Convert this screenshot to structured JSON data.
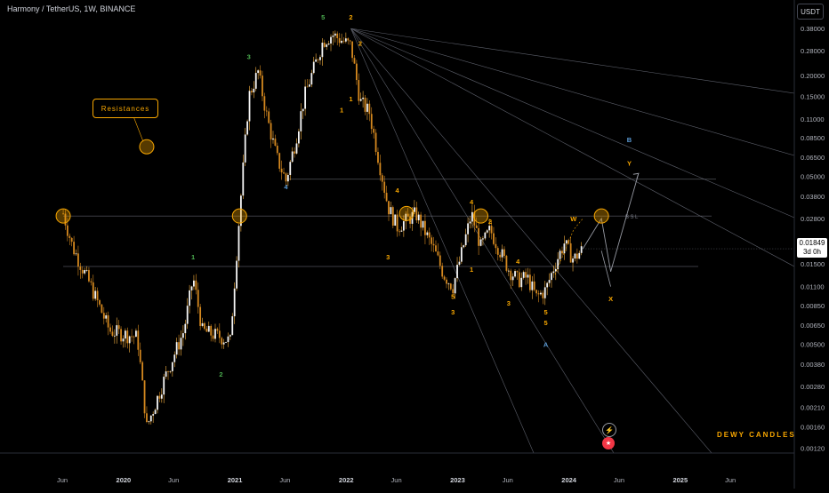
{
  "header": {
    "title": "Harmony / TetherUS, 1W, BINANCE",
    "currency_button": "USDT"
  },
  "price_tag": {
    "price": "0.01849",
    "countdown": "3d 0h"
  },
  "annotations": {
    "resistances_label": "Resistances",
    "watermark": "DEWY CANDLES",
    "bsl_label": "BSL"
  },
  "icons": [
    "lightning-icon",
    "us-flag-icon"
  ],
  "colors": {
    "background": "#000000",
    "accent": "#f7a600",
    "candle": "#e09b2d",
    "wave_blue": "#5b9bd5",
    "wave_green": "#4caf50",
    "grid": "#2a2e39"
  },
  "chart_data": {
    "type": "candlestick",
    "symbol": "Harmony / TetherUS",
    "interval": "1W",
    "exchange": "BINANCE",
    "y_scale": "log",
    "ylim": [
      0.0011,
      0.43
    ],
    "y_ticks": [
      "0.38000",
      "0.28000",
      "0.20000",
      "0.15000",
      "0.11000",
      "0.08500",
      "0.06500",
      "0.05000",
      "0.03800",
      "0.02800",
      "0.02000",
      "0.01500",
      "0.01100",
      "0.00850",
      "0.00650",
      "0.00500",
      "0.00380",
      "0.00280",
      "0.00210",
      "0.00160",
      "0.00120"
    ],
    "x_ticks": [
      "Jun",
      "2020",
      "Jun",
      "2021",
      "Jun",
      "2022",
      "Jun",
      "2023",
      "Jun",
      "2024",
      "Jun",
      "2025",
      "Jun"
    ],
    "last_price": 0.01849,
    "price_path": [
      [
        "2019-06",
        0.03
      ],
      [
        "2019-07",
        0.019
      ],
      [
        "2019-09",
        0.011
      ],
      [
        "2019-11",
        0.006
      ],
      [
        "2020-02",
        0.0055
      ],
      [
        "2020-03",
        0.0016
      ],
      [
        "2020-05",
        0.0032
      ],
      [
        "2020-07",
        0.006
      ],
      [
        "2020-08",
        0.0125
      ],
      [
        "2020-09",
        0.006
      ],
      [
        "2020-11",
        0.0055
      ],
      [
        "2020-12",
        0.0052
      ],
      [
        "2021-01",
        0.03
      ],
      [
        "2021-02",
        0.15
      ],
      [
        "2021-03",
        0.21
      ],
      [
        "2021-04",
        0.11
      ],
      [
        "2021-05",
        0.065
      ],
      [
        "2021-06",
        0.047
      ],
      [
        "2021-07",
        0.08
      ],
      [
        "2021-08",
        0.15
      ],
      [
        "2021-10",
        0.32
      ],
      [
        "2021-11",
        0.35
      ],
      [
        "2022-01",
        0.3
      ],
      [
        "2022-02",
        0.14
      ],
      [
        "2022-03",
        0.12
      ],
      [
        "2022-05",
        0.033
      ],
      [
        "2022-06",
        0.025
      ],
      [
        "2022-08",
        0.03
      ],
      [
        "2022-10",
        0.018
      ],
      [
        "2022-11",
        0.013
      ],
      [
        "2022-12",
        0.011
      ],
      [
        "2023-01",
        0.018
      ],
      [
        "2023-02",
        0.03
      ],
      [
        "2023-03",
        0.019
      ],
      [
        "2023-04",
        0.024
      ],
      [
        "2023-06",
        0.014
      ],
      [
        "2023-07",
        0.012
      ],
      [
        "2023-08",
        0.0125
      ],
      [
        "2023-09",
        0.0095
      ],
      [
        "2023-10",
        0.0105
      ],
      [
        "2023-11",
        0.015
      ],
      [
        "2023-12",
        0.02
      ],
      [
        "2024-01",
        0.016
      ],
      [
        "2024-02",
        0.01849
      ]
    ],
    "projection": [
      [
        "2024-02",
        0.0185
      ],
      [
        "2024-04",
        0.028
      ],
      [
        "2024-05",
        0.0135
      ],
      [
        "2024-08",
        0.052
      ]
    ],
    "horizontal_levels": [
      0.029,
      0.048,
      0.0145
    ],
    "wave_labels": [
      {
        "text": "5",
        "date": "2021-10",
        "price": 0.43,
        "color": "wave_green"
      },
      {
        "text": "2",
        "date": "2022-01",
        "price": 0.43,
        "color": "accent"
      },
      {
        "text": "3",
        "date": "2021-02",
        "price": 0.25,
        "color": "wave_green"
      },
      {
        "text": "4",
        "date": "2021-06",
        "price": 0.042,
        "color": "wave_blue"
      },
      {
        "text": "1",
        "date": "2021-12",
        "price": 0.12,
        "color": "accent"
      },
      {
        "text": "1",
        "date": "2022-01",
        "price": 0.14,
        "color": "accent"
      },
      {
        "text": "2",
        "date": "2022-02",
        "price": 0.3,
        "color": "accent"
      },
      {
        "text": "1",
        "date": "2020-08",
        "price": 0.016,
        "color": "wave_green"
      },
      {
        "text": "2",
        "date": "2020-11",
        "price": 0.0032,
        "color": "wave_green"
      },
      {
        "text": "4",
        "date": "2022-06",
        "price": 0.04,
        "color": "accent"
      },
      {
        "text": "3",
        "date": "2022-05",
        "price": 0.016,
        "color": "accent"
      },
      {
        "text": "4",
        "date": "2023-02",
        "price": 0.034,
        "color": "accent"
      },
      {
        "text": "5",
        "date": "2022-12",
        "price": 0.0093,
        "color": "accent"
      },
      {
        "text": "3",
        "date": "2022-12",
        "price": 0.0075,
        "color": "accent"
      },
      {
        "text": "2",
        "date": "2023-04",
        "price": 0.026,
        "color": "accent"
      },
      {
        "text": "1",
        "date": "2023-02",
        "price": 0.0135,
        "color": "accent"
      },
      {
        "text": "4",
        "date": "2023-07",
        "price": 0.015,
        "color": "accent"
      },
      {
        "text": "3",
        "date": "2023-06",
        "price": 0.0085,
        "color": "accent"
      },
      {
        "text": "5",
        "date": "2023-10",
        "price": 0.0075,
        "color": "accent"
      },
      {
        "text": "5",
        "date": "2023-10",
        "price": 0.0065,
        "color": "accent"
      },
      {
        "text": "A",
        "date": "2023-10",
        "price": 0.0048,
        "color": "wave_blue"
      },
      {
        "text": "W",
        "date": "2024-01",
        "price": 0.027,
        "color": "accent"
      },
      {
        "text": "X",
        "date": "2024-05",
        "price": 0.009,
        "color": "accent"
      },
      {
        "text": "Y",
        "date": "2024-07",
        "price": 0.058,
        "color": "accent"
      },
      {
        "text": "B",
        "date": "2024-07",
        "price": 0.08,
        "color": "wave_blue"
      }
    ],
    "circles": [
      {
        "date": "2019-06",
        "price": 0.029
      },
      {
        "date": "2020-03",
        "price": 0.075
      },
      {
        "date": "2021-01",
        "price": 0.029
      },
      {
        "date": "2022-07",
        "price": 0.03
      },
      {
        "date": "2023-03",
        "price": 0.029
      },
      {
        "date": "2024-04",
        "price": 0.029
      }
    ]
  }
}
